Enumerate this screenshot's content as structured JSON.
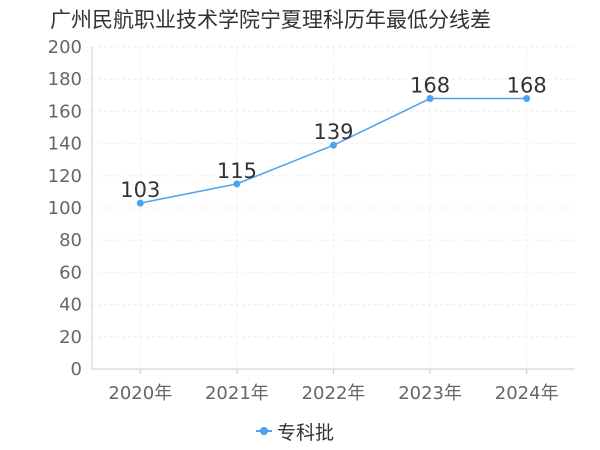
{
  "colors": {
    "series": "#4da3f0",
    "grid": "#eeeeee",
    "axis": "#cccccc"
  },
  "chart_data": {
    "type": "line",
    "title": "广州民航职业技术学院宁夏理科历年最低分线差",
    "categories": [
      "2020年",
      "2021年",
      "2022年",
      "2023年",
      "2024年"
    ],
    "y_ticks": [
      "0",
      "20",
      "40",
      "60",
      "80",
      "100",
      "120",
      "140",
      "160",
      "180",
      "200"
    ],
    "ylim": [
      0,
      200
    ],
    "grid": true,
    "legend_position": "bottom",
    "series": [
      {
        "name": "专科批",
        "values": [
          103,
          115,
          139,
          168,
          168
        ],
        "labels": [
          "103",
          "115",
          "139",
          "168",
          "168"
        ]
      }
    ]
  }
}
